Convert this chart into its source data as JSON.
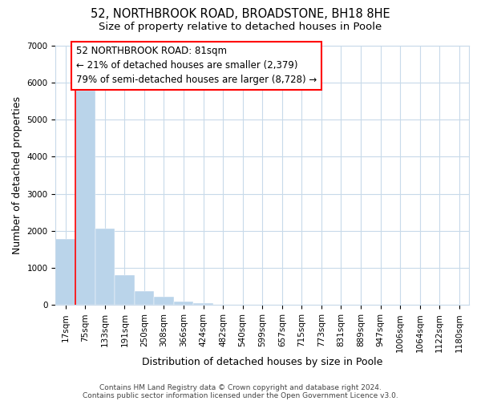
{
  "title_line1": "52, NORTHBROOK ROAD, BROADSTONE, BH18 8HE",
  "title_line2": "Size of property relative to detached houses in Poole",
  "xlabel": "Distribution of detached houses by size in Poole",
  "ylabel": "Number of detached properties",
  "bar_labels": [
    "17sqm",
    "75sqm",
    "133sqm",
    "191sqm",
    "250sqm",
    "308sqm",
    "366sqm",
    "424sqm",
    "482sqm",
    "540sqm",
    "599sqm",
    "657sqm",
    "715sqm",
    "773sqm",
    "831sqm",
    "889sqm",
    "947sqm",
    "1006sqm",
    "1064sqm",
    "1122sqm",
    "1180sqm"
  ],
  "bar_values": [
    1780,
    5780,
    2060,
    820,
    370,
    220,
    100,
    50,
    20,
    5,
    2,
    0,
    0,
    0,
    0,
    0,
    0,
    0,
    0,
    0,
    0
  ],
  "bar_color": "#bad4ea",
  "bar_edge_color": "#bad4ea",
  "ylim": [
    0,
    7000
  ],
  "yticks": [
    0,
    1000,
    2000,
    3000,
    4000,
    5000,
    6000,
    7000
  ],
  "property_line_color": "red",
  "annotation_line1": "52 NORTHBROOK ROAD: 81sqm",
  "annotation_line2": "← 21% of detached houses are smaller (2,379)",
  "annotation_line3": "79% of semi-detached houses are larger (8,728) →",
  "footer_line1": "Contains HM Land Registry data © Crown copyright and database right 2024.",
  "footer_line2": "Contains public sector information licensed under the Open Government Licence v3.0.",
  "background_color": "#ffffff",
  "grid_color": "#c8daea",
  "title_fontsize": 10.5,
  "subtitle_fontsize": 9.5,
  "axis_label_fontsize": 9,
  "tick_fontsize": 7.5,
  "annotation_fontsize": 8.5,
  "footer_fontsize": 6.5
}
